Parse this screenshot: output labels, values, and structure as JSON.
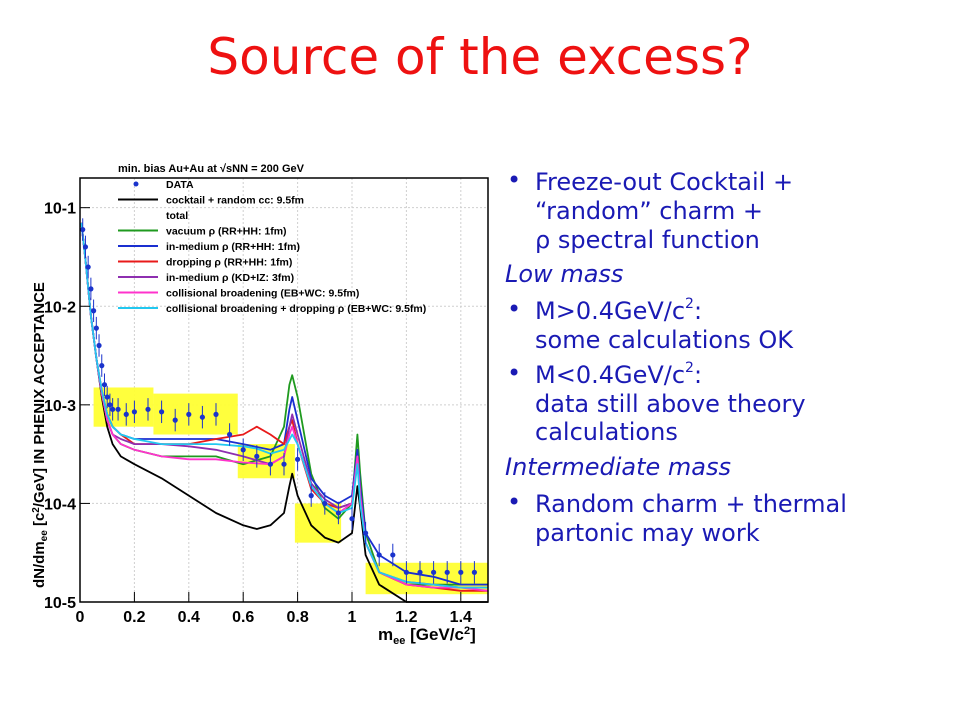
{
  "title": "Source of the excess?",
  "bullets": {
    "b1_l1": "Freeze-out Cocktail +",
    "b1_l2": "“random” charm +",
    "b1_l3": "ρ spectral function",
    "h1": "Low mass",
    "b2_l1a": "M>0.4GeV/c",
    "b2_sup": "2",
    "b2_l1b": ":",
    "b2_l2": "some calculations OK",
    "b3_l1a": "M<0.4GeV/c",
    "b3_sup": "2",
    "b3_l1b": ":",
    "b3_l2": "data still above theory",
    "b3_l3": "calculations",
    "h2": "Intermediate mass",
    "b4_l1": "Random charm + thermal",
    "b4_l2": "partonic may work"
  },
  "chart_data": {
    "type": "line",
    "legend_title": "min. bias Au+Au at √sNN = 200 GeV",
    "xlabel": "mee [GeV/c2]",
    "ylabel": "dN/dmee [c2/GeV] IN PHENIX ACCEPTANCE",
    "xlim": [
      0,
      1.5
    ],
    "ylim": [
      1e-05,
      0.2
    ],
    "yscale": "log",
    "x_ticks": [
      "0",
      "0.2",
      "0.4",
      "0.6",
      "0.8",
      "1",
      "1.2",
      "1.4"
    ],
    "y_ticks": [
      "10-1",
      "10-2",
      "10-3",
      "10-4",
      "10-5"
    ],
    "legend": [
      {
        "label": "DATA",
        "color": "#1a33cc",
        "marker": "point"
      },
      {
        "label": "cocktail + random cc: 9.5fm",
        "color": "#000000"
      },
      {
        "label": "total",
        "color": "#000000",
        "nomark": true
      },
      {
        "label": "vacuum ρ (RR+HH: 1fm)",
        "color": "#1f9a1f"
      },
      {
        "label": "in-medium ρ (RR+HH: 1fm)",
        "color": "#1a2fd0"
      },
      {
        "label": "dropping ρ (RR+HH: 1fm)",
        "color": "#e81a1a"
      },
      {
        "label": "in-medium ρ (KD+IZ: 3fm)",
        "color": "#8e2fb0"
      },
      {
        "label": "collisional broadening (EB+WC: 9.5fm)",
        "color": "#ff33cc"
      },
      {
        "label": "collisional broadening + dropping ρ (EB+WC: 9.5fm)",
        "color": "#22c8f0"
      }
    ],
    "data_points": {
      "x": [
        0.01,
        0.02,
        0.03,
        0.04,
        0.05,
        0.06,
        0.07,
        0.08,
        0.09,
        0.1,
        0.11,
        0.12,
        0.14,
        0.17,
        0.2,
        0.25,
        0.3,
        0.35,
        0.4,
        0.45,
        0.5,
        0.55,
        0.6,
        0.65,
        0.7,
        0.75,
        0.8,
        0.85,
        0.9,
        0.95,
        1.0,
        1.05,
        1.1,
        1.15,
        1.2,
        1.25,
        1.3,
        1.35,
        1.4,
        1.45
      ],
      "y": [
        0.06,
        0.04,
        0.025,
        0.015,
        0.009,
        0.006,
        0.004,
        0.0025,
        0.0016,
        0.0012,
        0.001,
        0.0009,
        0.0009,
        0.0008,
        0.00085,
        0.0009,
        0.00085,
        0.0007,
        0.0008,
        0.00075,
        0.0008,
        0.0005,
        0.00035,
        0.0003,
        0.00025,
        0.00025,
        0.00028,
        0.00012,
        0.0001,
        8e-05,
        7e-05,
        5e-05,
        3e-05,
        3e-05,
        2e-05,
        2e-05,
        2e-05,
        2e-05,
        2e-05,
        2e-05
      ]
    },
    "sys_boxes": [
      {
        "x0": 0.05,
        "x1": 0.27,
        "y0": 0.0006,
        "y1": 0.0015
      },
      {
        "x0": 0.27,
        "x1": 0.58,
        "y0": 0.0005,
        "y1": 0.0013
      },
      {
        "x0": 0.58,
        "x1": 0.79,
        "y0": 0.00018,
        "y1": 0.0004
      },
      {
        "x0": 0.79,
        "x1": 0.96,
        "y0": 4e-05,
        "y1": 0.0001
      },
      {
        "x0": 1.05,
        "x1": 1.5,
        "y0": 1.2e-05,
        "y1": 2.5e-05
      }
    ],
    "series": [
      {
        "name": "cocktail + random cc: 9.5fm",
        "color": "#000000",
        "x": [
          0.005,
          0.02,
          0.04,
          0.06,
          0.08,
          0.1,
          0.12,
          0.15,
          0.2,
          0.3,
          0.4,
          0.5,
          0.6,
          0.65,
          0.7,
          0.75,
          0.77,
          0.78,
          0.8,
          0.85,
          0.9,
          0.95,
          1.0,
          1.02,
          1.03,
          1.05,
          1.1,
          1.2,
          1.3,
          1.4,
          1.5
        ],
        "y": [
          0.07,
          0.03,
          0.008,
          0.003,
          0.0012,
          0.0006,
          0.0004,
          0.0003,
          0.00025,
          0.00018,
          0.00012,
          8e-05,
          6e-05,
          5.5e-05,
          6e-05,
          8e-05,
          0.00015,
          0.0002,
          0.00012,
          6e-05,
          4.5e-05,
          4e-05,
          5e-05,
          0.00015,
          9e-05,
          3e-05,
          1.5e-05,
          1e-05,
          1e-05,
          1e-05,
          1e-05
        ]
      },
      {
        "name": "vacuum ρ (RR+HH: 1fm)",
        "color": "#1f9a1f",
        "x": [
          0.005,
          0.02,
          0.04,
          0.06,
          0.08,
          0.1,
          0.12,
          0.15,
          0.2,
          0.3,
          0.4,
          0.5,
          0.6,
          0.7,
          0.75,
          0.77,
          0.78,
          0.8,
          0.85,
          0.9,
          0.95,
          1.0,
          1.02,
          1.03,
          1.05,
          1.1,
          1.2,
          1.3,
          1.4,
          1.5
        ],
        "y": [
          0.07,
          0.03,
          0.008,
          0.003,
          0.0013,
          0.0007,
          0.0005,
          0.0004,
          0.00035,
          0.0003,
          0.0003,
          0.0003,
          0.00025,
          0.0003,
          0.0006,
          0.0016,
          0.002,
          0.0012,
          0.0002,
          9e-05,
          7e-05,
          0.0001,
          0.0005,
          0.0002,
          5e-05,
          2e-05,
          1.5e-05,
          1.5e-05,
          1.5e-05,
          1.5e-05
        ]
      },
      {
        "name": "in-medium ρ (RR+HH: 1fm)",
        "color": "#1a2fd0",
        "x": [
          0.005,
          0.02,
          0.04,
          0.06,
          0.08,
          0.1,
          0.12,
          0.15,
          0.2,
          0.3,
          0.4,
          0.5,
          0.6,
          0.7,
          0.75,
          0.77,
          0.78,
          0.8,
          0.85,
          0.9,
          0.95,
          1.0,
          1.02,
          1.03,
          1.05,
          1.1,
          1.2,
          1.3,
          1.4,
          1.5
        ],
        "y": [
          0.07,
          0.03,
          0.008,
          0.003,
          0.0013,
          0.0008,
          0.0006,
          0.0005,
          0.00045,
          0.00045,
          0.00045,
          0.00045,
          0.0004,
          0.00035,
          0.0004,
          0.0009,
          0.0012,
          0.0007,
          0.00018,
          0.00012,
          0.0001,
          0.00012,
          0.00035,
          0.00015,
          5e-05,
          3e-05,
          2e-05,
          1.8e-05,
          1.5e-05,
          1.5e-05
        ]
      },
      {
        "name": "dropping ρ (RR+HH: 1fm)",
        "color": "#e81a1a",
        "x": [
          0.005,
          0.02,
          0.04,
          0.06,
          0.08,
          0.1,
          0.12,
          0.15,
          0.2,
          0.3,
          0.4,
          0.5,
          0.6,
          0.65,
          0.7,
          0.75,
          0.77,
          0.78,
          0.8,
          0.85,
          0.9,
          0.95,
          1.0,
          1.02,
          1.03,
          1.05,
          1.1,
          1.2,
          1.3,
          1.4,
          1.5
        ],
        "y": [
          0.07,
          0.03,
          0.008,
          0.003,
          0.0014,
          0.0008,
          0.0006,
          0.0005,
          0.0004,
          0.0004,
          0.0004,
          0.00045,
          0.0005,
          0.0006,
          0.0005,
          0.0004,
          0.0006,
          0.0007,
          0.0004,
          0.00014,
          0.0001,
          9e-05,
          0.0001,
          0.0003,
          0.00012,
          4e-05,
          2e-05,
          1.5e-05,
          1.4e-05,
          1.3e-05,
          1.3e-05
        ]
      },
      {
        "name": "in-medium ρ (KD+IZ: 3fm)",
        "color": "#8e2fb0",
        "x": [
          0.005,
          0.02,
          0.04,
          0.06,
          0.08,
          0.1,
          0.12,
          0.15,
          0.2,
          0.3,
          0.4,
          0.5,
          0.6,
          0.7,
          0.75,
          0.77,
          0.78,
          0.8,
          0.85,
          0.9,
          0.95,
          1.0,
          1.02,
          1.03,
          1.05,
          1.1,
          1.2,
          1.3,
          1.4,
          1.5
        ],
        "y": [
          0.07,
          0.03,
          0.008,
          0.003,
          0.0013,
          0.0007,
          0.0005,
          0.00045,
          0.0004,
          0.0004,
          0.00038,
          0.00035,
          0.0003,
          0.00025,
          0.0003,
          0.0006,
          0.0008,
          0.0005,
          0.00016,
          0.00011,
          9e-05,
          0.0001,
          0.0003,
          0.00013,
          4e-05,
          2e-05,
          1.6e-05,
          1.5e-05,
          1.4e-05,
          1.4e-05
        ]
      },
      {
        "name": "collisional broadening (EB+WC: 9.5fm)",
        "color": "#ff33cc",
        "x": [
          0.005,
          0.02,
          0.04,
          0.06,
          0.08,
          0.1,
          0.12,
          0.15,
          0.2,
          0.3,
          0.4,
          0.5,
          0.6,
          0.7,
          0.75,
          0.77,
          0.78,
          0.8,
          0.85,
          0.9,
          0.95,
          1.0,
          1.02,
          1.03,
          1.05,
          1.1,
          1.2,
          1.3,
          1.4,
          1.5
        ],
        "y": [
          0.07,
          0.03,
          0.008,
          0.003,
          0.0013,
          0.0007,
          0.0005,
          0.0004,
          0.00035,
          0.0003,
          0.00028,
          0.00028,
          0.00026,
          0.00025,
          0.0003,
          0.0005,
          0.0006,
          0.0004,
          0.00015,
          0.0001,
          8e-05,
          0.0001,
          0.0003,
          0.00012,
          4e-05,
          2e-05,
          1.5e-05,
          1.4e-05,
          1.4e-05,
          1.3e-05
        ]
      },
      {
        "name": "collisional broadening + dropping ρ (EB+WC: 9.5fm)",
        "color": "#22c8f0",
        "x": [
          0.005,
          0.02,
          0.04,
          0.06,
          0.08,
          0.1,
          0.12,
          0.15,
          0.2,
          0.3,
          0.4,
          0.5,
          0.6,
          0.65,
          0.7,
          0.75,
          0.78,
          0.8,
          0.85,
          0.9,
          0.95,
          1.0,
          1.02,
          1.03,
          1.05,
          1.1,
          1.2,
          1.3,
          1.4,
          1.5
        ],
        "y": [
          0.07,
          0.03,
          0.008,
          0.003,
          0.0014,
          0.0008,
          0.0006,
          0.0005,
          0.00045,
          0.0004,
          0.0004,
          0.0004,
          0.00038,
          0.00036,
          0.00032,
          0.00035,
          0.0005,
          0.0004,
          0.00015,
          0.0001,
          8e-05,
          9e-05,
          0.00025,
          0.0001,
          4e-05,
          2e-05,
          1.6e-05,
          1.5e-05,
          1.4e-05,
          1.4e-05
        ]
      }
    ]
  }
}
